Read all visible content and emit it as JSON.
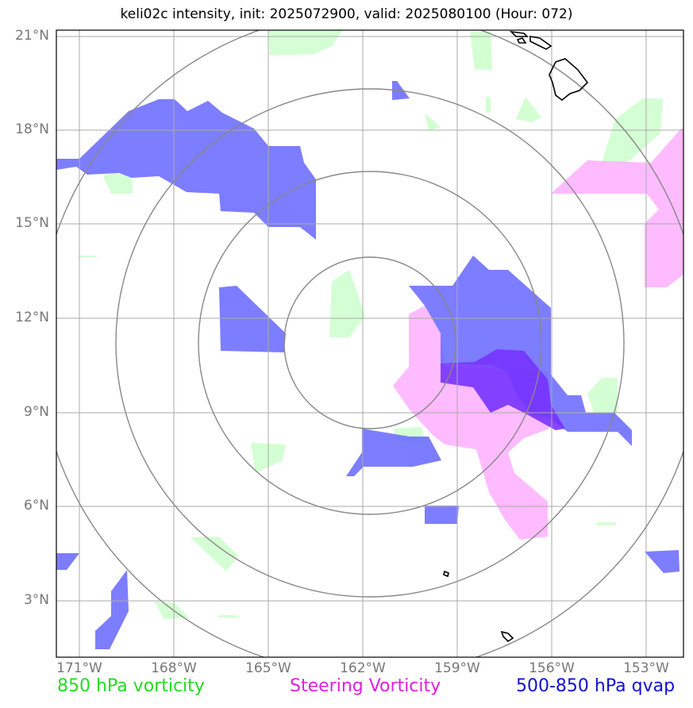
{
  "title": "keli02c intensity, init: 2025072900, valid: 2025080100 (Hour: 072)",
  "lat_labels": [
    "21°N",
    "18°N",
    "15°N",
    "12°N",
    "9°N",
    "6°N",
    "3°N"
  ],
  "lon_labels": [
    "171°W",
    "168°W",
    "165°W",
    "162°W",
    "159°W",
    "156°W",
    "153°W"
  ],
  "legend": {
    "green": "850 hPa vorticity",
    "pink": "Steering Vorticity",
    "blue": "500-850 hPa qvap"
  },
  "colors": {
    "green": "#ccffcc",
    "pink": "#ffaaff",
    "blue": "#6666ff",
    "purple": "#7733ff",
    "grid": "#aaaaaa",
    "rings": "#888888"
  }
}
